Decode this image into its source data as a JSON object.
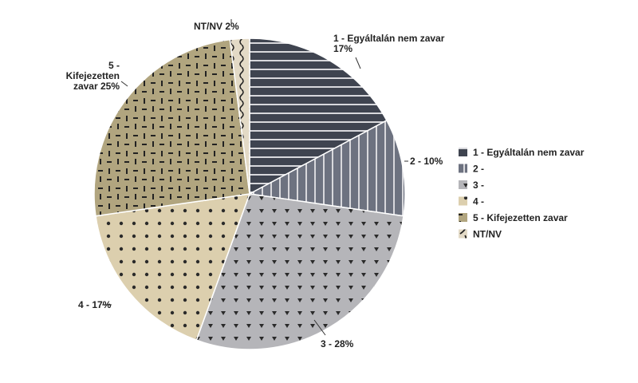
{
  "chart_data": {
    "type": "pie",
    "title": "",
    "start": "top, clockwise",
    "slices": [
      {
        "name": "1 - Egyáltalán nem zavar",
        "legend": "1 - Egyáltalán nem zavar",
        "value": 17,
        "label": [
          "1 - Egyáltalán nem zavar",
          "17%"
        ],
        "color": "#3f4450",
        "pattern": "horizontal-stripes"
      },
      {
        "name": "2",
        "legend": "2 -",
        "value": 10,
        "label": [
          "2 - 10%"
        ],
        "color": "#6d7280",
        "pattern": "vertical-stripes"
      },
      {
        "name": "3",
        "legend": "3 -",
        "value": 28,
        "label": [
          "3 - 28%"
        ],
        "color": "#b5b5b9",
        "pattern": "triangles"
      },
      {
        "name": "4",
        "legend": "4 -",
        "value": 17,
        "label": [
          "4 - 17%"
        ],
        "color": "#dccfae",
        "pattern": "dots"
      },
      {
        "name": "5 - Kifejezetten zavar",
        "legend": "5 - Kifejezetten zavar",
        "value": 25,
        "label": [
          "5 -",
          "Kifejezetten",
          "zavar 25%"
        ],
        "color": "#b1a57f",
        "pattern": "dashes"
      },
      {
        "name": "NT/NV",
        "legend": "NT/NV",
        "value": 2,
        "label": [
          "NT/NV 2%"
        ],
        "color": "#e3dac6",
        "pattern": "waves"
      }
    ],
    "legend_position": "right"
  }
}
